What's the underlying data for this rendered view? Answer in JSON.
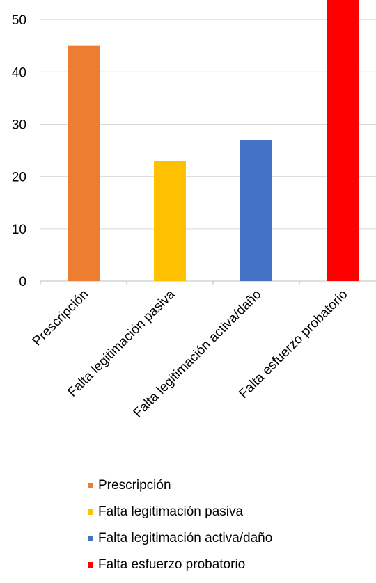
{
  "chart_data": {
    "type": "bar",
    "categories": [
      "Prescripción",
      "Falta legitimación pasiva",
      "Falta legitimación activa/daño",
      "Falta esfuerzo probatorio"
    ],
    "values": [
      45,
      23,
      27,
      54
    ],
    "colors": [
      "#ED7D31",
      "#FFC000",
      "#4472C4",
      "#FF0000"
    ],
    "yticks": [
      "0",
      "10",
      "20",
      "30",
      "40",
      "50"
    ],
    "ylim": [
      0,
      54
    ],
    "grid": true,
    "legend_position": "bottom"
  }
}
